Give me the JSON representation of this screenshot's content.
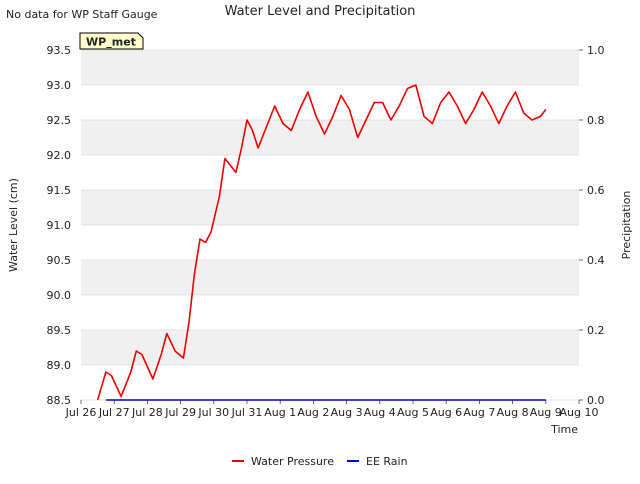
{
  "header": {
    "note": "No data for WP Staff Gauge"
  },
  "badge": {
    "label": "WP_met"
  },
  "colors": {
    "band": "#f0f0f0",
    "water": "#ee0000",
    "rain": "#0000cc",
    "badge_fill": "#ffffcc",
    "badge_text": "#8b0000"
  },
  "chart_data": {
    "type": "line",
    "title": "Water Level and Precipitation",
    "xlabel": "Time",
    "ylabel": "Water Level (cm)",
    "y2label": "Precipitation",
    "ylim": [
      88.5,
      93.5
    ],
    "y2lim": [
      0.0,
      1.0
    ],
    "yticks": [
      "88.5",
      "89.0",
      "89.5",
      "90.0",
      "90.5",
      "91.0",
      "91.5",
      "92.0",
      "92.5",
      "93.0",
      "93.5"
    ],
    "y2ticks": [
      "0.0",
      "0.2",
      "0.4",
      "0.6",
      "0.8",
      "1.0"
    ],
    "xticks": [
      "Jul 26",
      "Jul 27",
      "Jul 28",
      "Jul 29",
      "Jul 30",
      "Jul 31",
      "Aug 1",
      "Aug 2",
      "Aug 3",
      "Aug 4",
      "Aug 5",
      "Aug 6",
      "Aug 7",
      "Aug 8",
      "Aug 9",
      "Aug 10"
    ],
    "legend_position": "bottom-center",
    "grid": "horizontal bands",
    "series": [
      {
        "name": "Water Pressure",
        "axis": "left",
        "x": [
          "Jul 26 12:00",
          "Jul 26 18:00",
          "Jul 26 22:00",
          "Jul 27 05:00",
          "Jul 27 12:00",
          "Jul 27 16:00",
          "Jul 27 20:00",
          "Jul 28 04:00",
          "Jul 28 10:00",
          "Jul 28 14:00",
          "Jul 28 20:00",
          "Jul 29 02:00",
          "Jul 29 06:00",
          "Jul 29 10:00",
          "Jul 29 14:00",
          "Jul 29 18:00",
          "Jul 29 22:00",
          "Jul 30 04:00",
          "Jul 30 08:00",
          "Jul 30 12:00",
          "Jul 30 16:00",
          "Jul 30 20:00",
          "Jul 31 00:00",
          "Jul 31 04:00",
          "Jul 31 08:00",
          "Jul 31 14:00",
          "Jul 31 20:00",
          "Aug 1 02:00",
          "Aug 1 08:00",
          "Aug 1 14:00",
          "Aug 1 20:00",
          "Aug 2 02:00",
          "Aug 2 08:00",
          "Aug 2 14:00",
          "Aug 2 20:00",
          "Aug 3 02:00",
          "Aug 3 08:00",
          "Aug 3 14:00",
          "Aug 3 20:00",
          "Aug 4 02:00",
          "Aug 4 08:00",
          "Aug 4 14:00",
          "Aug 4 20:00",
          "Aug 5 02:00",
          "Aug 5 08:00",
          "Aug 5 14:00",
          "Aug 5 20:00",
          "Aug 6 02:00",
          "Aug 6 08:00",
          "Aug 6 14:00",
          "Aug 6 20:00",
          "Aug 7 02:00",
          "Aug 7 08:00",
          "Aug 7 14:00",
          "Aug 7 20:00",
          "Aug 8 02:00",
          "Aug 8 08:00",
          "Aug 8 14:00",
          "Aug 8 20:00",
          "Aug 9 00:00"
        ],
        "y": [
          88.5,
          88.9,
          88.85,
          88.55,
          88.9,
          89.2,
          89.15,
          88.8,
          89.15,
          89.45,
          89.2,
          89.1,
          89.6,
          90.3,
          90.8,
          90.75,
          90.9,
          91.4,
          91.95,
          91.85,
          91.75,
          92.1,
          92.5,
          92.35,
          92.1,
          92.4,
          92.7,
          92.45,
          92.35,
          92.65,
          92.9,
          92.55,
          92.3,
          92.55,
          92.85,
          92.65,
          92.25,
          92.5,
          92.75,
          92.75,
          92.5,
          92.7,
          92.95,
          93.0,
          92.55,
          92.45,
          92.75,
          92.9,
          92.7,
          92.45,
          92.65,
          92.9,
          92.7,
          92.45,
          92.7,
          92.9,
          92.6,
          92.5,
          92.55,
          92.65
        ]
      },
      {
        "name": "EE Rain",
        "axis": "right",
        "x": [
          "Jul 26 18:00",
          "Aug 9 00:00"
        ],
        "y": [
          0.0,
          0.0
        ]
      }
    ]
  }
}
